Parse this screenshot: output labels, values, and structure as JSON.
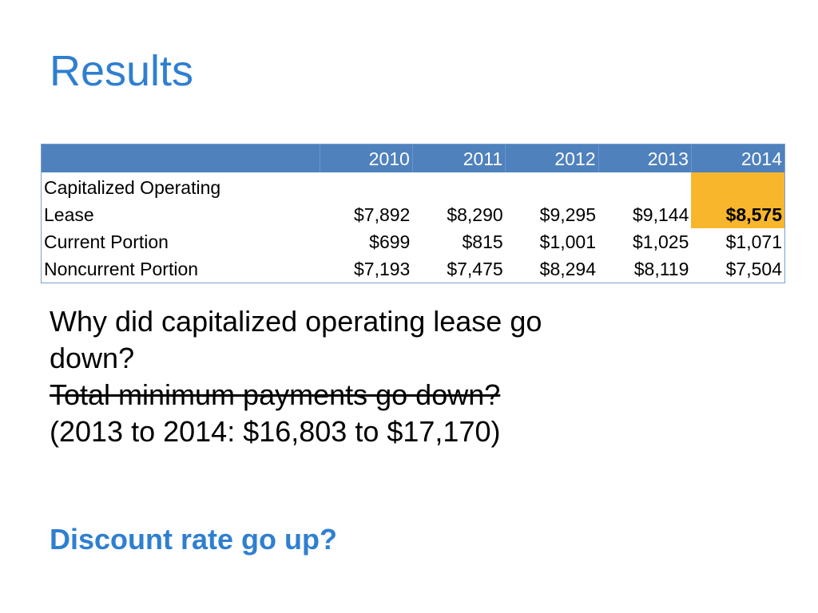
{
  "title": "Results",
  "table": {
    "headers": [
      "",
      "2010",
      "2011",
      "2012",
      "2013",
      "2014"
    ],
    "rows": [
      {
        "label_line1": "Capitalized Operating",
        "label_line2": "Lease",
        "values": [
          "$7,892",
          "$8,290",
          "$9,295",
          "$9,144",
          "$8,575"
        ]
      },
      {
        "label": "Current Portion",
        "values": [
          "$699",
          "$815",
          "$1,001",
          "$1,025",
          "$1,071"
        ]
      },
      {
        "label": "Noncurrent Portion",
        "values": [
          "$7,193",
          "$7,475",
          "$8,294",
          "$8,119",
          "$7,504"
        ]
      }
    ],
    "highlight_color": "#f8b62d",
    "header_color": "#4f81bd"
  },
  "body": {
    "question_line1": "Why did capitalized operating lease go",
    "question_line2": "down?",
    "struck_line": "Total minimum payments go down?",
    "detail_line": "(2013 to 2014: $16,803 to $17,170)",
    "answer": "Discount rate go up?"
  },
  "colors": {
    "title": "#2f7fd1",
    "answer": "#2f7fd1"
  }
}
